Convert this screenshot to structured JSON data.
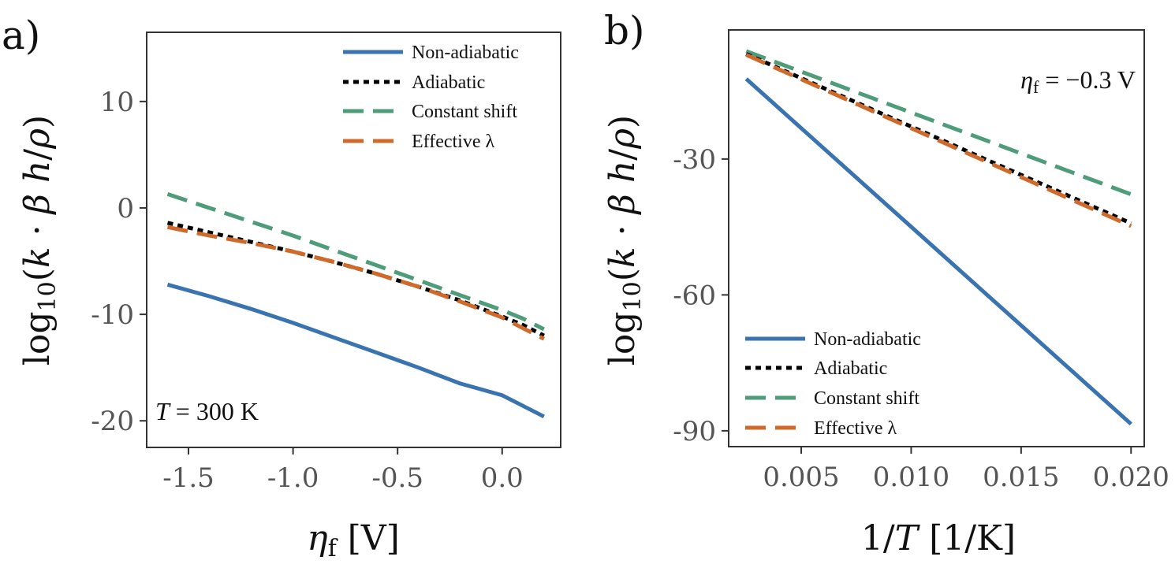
{
  "colors": {
    "non_adiabatic": "#3a74b0",
    "adiabatic": "#000000",
    "constant_shift": "#4e9c7a",
    "effective_lambda": "#d06a2a",
    "axis": "#333333",
    "tick_text": "#555555"
  },
  "chart_data": [
    {
      "type": "line",
      "panel_label": "a)",
      "xlabel": "ηf [V]",
      "ylabel": "log10(k · β h/ρ)",
      "xlim": [
        -1.7,
        0.28
      ],
      "ylim": [
        -22.5,
        16.5
      ],
      "xticks": [
        -1.5,
        -1.0,
        -0.5,
        0.0
      ],
      "xtick_labels": [
        "-1.5",
        "-1.0",
        "-0.5",
        "0.0"
      ],
      "yticks": [
        10,
        0,
        -10,
        -20
      ],
      "ytick_labels": [
        "10",
        "0",
        "-10",
        "-20"
      ],
      "annotation": "T = 300 K",
      "legend": [
        "Non-adiabatic",
        "Adiabatic",
        "Constant shift",
        "Effective λ"
      ],
      "legend_position": "top-right",
      "x": [
        -1.6,
        -1.4,
        -1.2,
        -1.0,
        -0.8,
        -0.6,
        -0.4,
        -0.2,
        0.0,
        0.1,
        0.2
      ],
      "series": [
        {
          "name": "Non-adiabatic",
          "style": "solid",
          "values": [
            -7.2,
            -8.3,
            -9.5,
            -10.8,
            -12.2,
            -13.6,
            -15.0,
            -16.5,
            -17.6,
            -18.6,
            -19.6
          ]
        },
        {
          "name": "Adiabatic",
          "style": "dotted",
          "values": [
            -1.4,
            -2.3,
            -3.2,
            -4.1,
            -5.1,
            -6.2,
            -7.4,
            -8.7,
            -10.2,
            -11.0,
            -12.0
          ]
        },
        {
          "name": "Constant shift",
          "style": "dashed",
          "values": [
            1.3,
            0.0,
            -1.3,
            -2.6,
            -4.0,
            -5.4,
            -6.8,
            -8.2,
            -9.6,
            -10.4,
            -11.4
          ]
        },
        {
          "name": "Effective λ",
          "style": "dashed",
          "values": [
            -1.8,
            -2.6,
            -3.3,
            -4.1,
            -5.1,
            -6.2,
            -7.4,
            -8.8,
            -10.3,
            -11.3,
            -12.3
          ]
        }
      ]
    },
    {
      "type": "line",
      "panel_label": "b)",
      "xlabel": "1/T [1/K]",
      "ylabel": "log10(k · β h/ρ)",
      "xlim": [
        0.0017,
        0.0206
      ],
      "ylim": [
        -93.5,
        -1.5
      ],
      "xticks": [
        0.005,
        0.01,
        0.015,
        0.02
      ],
      "xtick_labels": [
        "0.005",
        "0.010",
        "0.015",
        "0.020"
      ],
      "yticks": [
        -30,
        -60,
        -90
      ],
      "ytick_labels": [
        "-30",
        "-60",
        "-90"
      ],
      "annotation": "ηf = −0.3 V",
      "legend": [
        "Non-adiabatic",
        "Adiabatic",
        "Constant shift",
        "Effective λ"
      ],
      "legend_position": "bottom-left",
      "x": [
        0.0025,
        0.02
      ],
      "series": [
        {
          "name": "Non-adiabatic",
          "style": "solid",
          "values": [
            -12.3,
            -88.5
          ]
        },
        {
          "name": "Adiabatic",
          "style": "dotted",
          "values": [
            -6.8,
            -44.2
          ]
        },
        {
          "name": "Constant shift",
          "style": "dashed",
          "values": [
            -6.2,
            -37.8
          ]
        },
        {
          "name": "Effective λ",
          "style": "dashed",
          "values": [
            -7.0,
            -44.8
          ]
        }
      ]
    }
  ]
}
